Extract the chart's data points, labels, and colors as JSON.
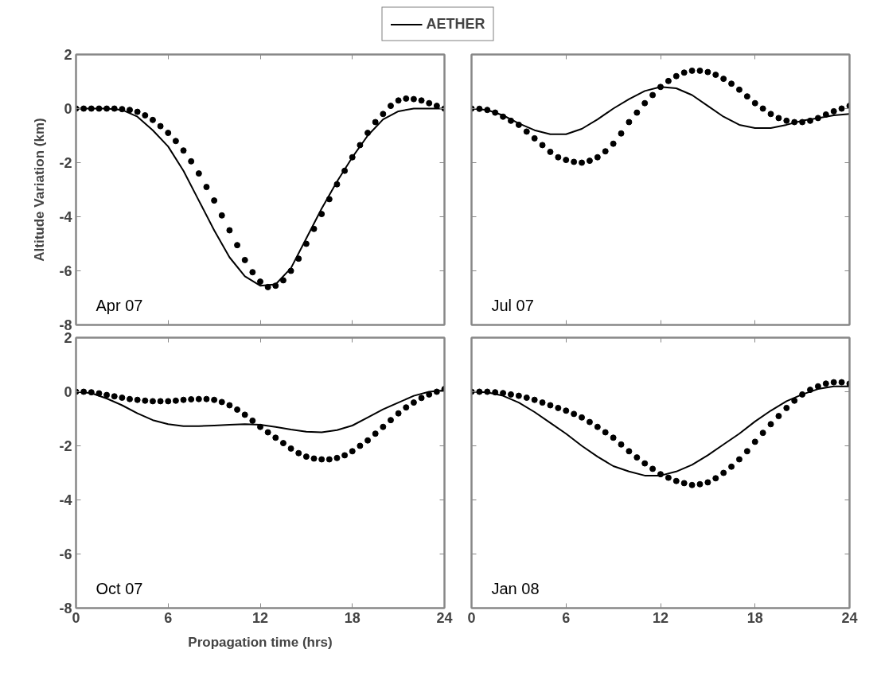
{
  "chart_data": [
    {
      "type": "line",
      "title": "Apr 07",
      "ylabel": "Altitude Variation (km)",
      "xlim": [
        0,
        24
      ],
      "ylim": [
        -8,
        2
      ],
      "xticks": [
        0,
        6,
        12,
        18,
        24
      ],
      "yticks": [
        -8,
        -6,
        -4,
        -2,
        0,
        2
      ],
      "tick_labels": "y",
      "grid": false,
      "legend": "top",
      "series": [
        {
          "name": "AETHER",
          "color": "#000000",
          "x": [
            0,
            1,
            2,
            3,
            4,
            5,
            6,
            7,
            8,
            9,
            10,
            11,
            12,
            13,
            14,
            15,
            16,
            17,
            18,
            19,
            20,
            21,
            22,
            23,
            24
          ],
          "values": [
            0,
            0,
            0,
            -0.05,
            -0.3,
            -0.8,
            -1.4,
            -2.3,
            -3.4,
            -4.5,
            -5.5,
            -6.2,
            -6.55,
            -6.5,
            -5.9,
            -4.8,
            -3.7,
            -2.7,
            -1.8,
            -1.0,
            -0.4,
            -0.1,
            0,
            0,
            0
          ]
        },
        {
          "type": "scatter",
          "marker": "circle",
          "color": "#000000",
          "x": [
            0,
            0.5,
            1,
            1.5,
            2,
            2.5,
            3,
            3.5,
            4,
            4.5,
            5,
            5.5,
            6,
            6.5,
            7,
            7.5,
            8,
            8.5,
            9,
            9.5,
            10,
            10.5,
            11,
            11.5,
            12,
            12.5,
            13,
            13.5,
            14,
            14.5,
            15,
            15.5,
            16,
            16.5,
            17,
            17.5,
            18,
            18.5,
            19,
            19.5,
            20,
            20.5,
            21,
            21.5,
            22,
            22.5,
            23,
            23.5,
            24
          ],
          "values": [
            0,
            0,
            0,
            0,
            0,
            0,
            -0.02,
            -0.05,
            -0.12,
            -0.25,
            -0.42,
            -0.65,
            -0.9,
            -1.2,
            -1.55,
            -1.95,
            -2.4,
            -2.9,
            -3.4,
            -3.95,
            -4.5,
            -5.05,
            -5.6,
            -6.05,
            -6.4,
            -6.6,
            -6.55,
            -6.35,
            -6.0,
            -5.55,
            -5.0,
            -4.45,
            -3.9,
            -3.35,
            -2.8,
            -2.3,
            -1.8,
            -1.35,
            -0.9,
            -0.5,
            -0.2,
            0.1,
            0.3,
            0.37,
            0.35,
            0.3,
            0.2,
            0.1,
            0
          ]
        }
      ]
    },
    {
      "type": "line",
      "title": "Jul 07",
      "xlim": [
        0,
        24
      ],
      "ylim": [
        -8,
        2
      ],
      "xticks": [
        0,
        6,
        12,
        18,
        24
      ],
      "yticks": [
        -8,
        -6,
        -4,
        -2,
        0,
        2
      ],
      "tick_labels": false,
      "grid": false,
      "series": [
        {
          "color": "#000000",
          "x": [
            0,
            1,
            2,
            3,
            4,
            5,
            6,
            7,
            8,
            9,
            10,
            11,
            12,
            13,
            14,
            15,
            16,
            17,
            18,
            19,
            20,
            21,
            22,
            23,
            24
          ],
          "values": [
            0,
            -0.05,
            -0.25,
            -0.55,
            -0.8,
            -0.95,
            -0.95,
            -0.75,
            -0.4,
            0,
            0.35,
            0.65,
            0.8,
            0.75,
            0.5,
            0.1,
            -0.3,
            -0.6,
            -0.72,
            -0.72,
            -0.6,
            -0.45,
            -0.35,
            -0.25,
            -0.2
          ]
        },
        {
          "type": "scatter",
          "marker": "circle",
          "color": "#000000",
          "x": [
            0,
            0.5,
            1,
            1.5,
            2,
            2.5,
            3,
            3.5,
            4,
            4.5,
            5,
            5.5,
            6,
            6.5,
            7,
            7.5,
            8,
            8.5,
            9,
            9.5,
            10,
            10.5,
            11,
            11.5,
            12,
            12.5,
            13,
            13.5,
            14,
            14.5,
            15,
            15.5,
            16,
            16.5,
            17,
            17.5,
            18,
            18.5,
            19,
            19.5,
            20,
            20.5,
            21,
            21.5,
            22,
            22.5,
            23,
            23.5,
            24
          ],
          "values": [
            0,
            -0.01,
            -0.05,
            -0.15,
            -0.3,
            -0.45,
            -0.6,
            -0.85,
            -1.1,
            -1.35,
            -1.6,
            -1.8,
            -1.9,
            -1.97,
            -2.0,
            -1.93,
            -1.8,
            -1.58,
            -1.3,
            -0.92,
            -0.5,
            -0.15,
            0.2,
            0.5,
            0.8,
            1.02,
            1.2,
            1.33,
            1.4,
            1.4,
            1.35,
            1.25,
            1.1,
            0.92,
            0.7,
            0.45,
            0.2,
            0,
            -0.2,
            -0.35,
            -0.45,
            -0.5,
            -0.5,
            -0.45,
            -0.35,
            -0.22,
            -0.1,
            0,
            0.1
          ]
        }
      ]
    },
    {
      "type": "line",
      "title": "Oct 07",
      "xlabel": "Propagation time (hrs)",
      "xlim": [
        0,
        24
      ],
      "ylim": [
        -8,
        2
      ],
      "xticks": [
        0,
        6,
        12,
        18,
        24
      ],
      "yticks": [
        -8,
        -6,
        -4,
        -2,
        0,
        2
      ],
      "grid": false,
      "series": [
        {
          "color": "#000000",
          "x": [
            0,
            1,
            2,
            3,
            4,
            5,
            6,
            7,
            8,
            9,
            10,
            11,
            12,
            13,
            14,
            15,
            16,
            17,
            18,
            19,
            20,
            21,
            22,
            23,
            24
          ],
          "values": [
            0,
            -0.05,
            -0.25,
            -0.5,
            -0.8,
            -1.05,
            -1.2,
            -1.27,
            -1.27,
            -1.25,
            -1.22,
            -1.2,
            -1.22,
            -1.3,
            -1.4,
            -1.48,
            -1.5,
            -1.42,
            -1.25,
            -0.95,
            -0.65,
            -0.4,
            -0.15,
            0,
            0.05
          ]
        },
        {
          "type": "scatter",
          "marker": "circle",
          "color": "#000000",
          "x": [
            0,
            0.5,
            1,
            1.5,
            2,
            2.5,
            3,
            3.5,
            4,
            4.5,
            5,
            5.5,
            6,
            6.5,
            7,
            7.5,
            8,
            8.5,
            9,
            9.5,
            10,
            10.5,
            11,
            11.5,
            12,
            12.5,
            13,
            13.5,
            14,
            14.5,
            15,
            15.5,
            16,
            16.5,
            17,
            17.5,
            18,
            18.5,
            19,
            19.5,
            20,
            20.5,
            21,
            21.5,
            22,
            22.5,
            23,
            23.5,
            24
          ],
          "values": [
            0,
            0,
            -0.02,
            -0.06,
            -0.12,
            -0.17,
            -0.22,
            -0.27,
            -0.3,
            -0.33,
            -0.35,
            -0.35,
            -0.35,
            -0.33,
            -0.3,
            -0.28,
            -0.27,
            -0.27,
            -0.3,
            -0.38,
            -0.5,
            -0.66,
            -0.85,
            -1.07,
            -1.3,
            -1.5,
            -1.7,
            -1.9,
            -2.1,
            -2.27,
            -2.4,
            -2.47,
            -2.5,
            -2.5,
            -2.45,
            -2.35,
            -2.2,
            -2.0,
            -1.8,
            -1.55,
            -1.3,
            -1.05,
            -0.8,
            -0.58,
            -0.4,
            -0.23,
            -0.1,
            0,
            0.1
          ]
        }
      ]
    },
    {
      "type": "line",
      "title": "Jan 08",
      "xlim": [
        0,
        24
      ],
      "ylim": [
        -8,
        2
      ],
      "xticks": [
        0,
        6,
        12,
        18,
        24
      ],
      "yticks": [
        -8,
        -6,
        -4,
        -2,
        0,
        2
      ],
      "tick_labels": "x",
      "grid": false,
      "series": [
        {
          "color": "#000000",
          "x": [
            0,
            1,
            2,
            3,
            4,
            5,
            6,
            7,
            8,
            9,
            10,
            11,
            12,
            13,
            14,
            15,
            16,
            17,
            18,
            19,
            20,
            21,
            22,
            23,
            24
          ],
          "values": [
            0,
            -0.02,
            -0.15,
            -0.4,
            -0.75,
            -1.15,
            -1.55,
            -2.0,
            -2.4,
            -2.75,
            -2.95,
            -3.1,
            -3.1,
            -2.95,
            -2.7,
            -2.35,
            -1.95,
            -1.55,
            -1.1,
            -0.7,
            -0.35,
            -0.1,
            0.1,
            0.2,
            0.2
          ]
        },
        {
          "type": "scatter",
          "marker": "circle",
          "color": "#000000",
          "x": [
            0,
            0.5,
            1,
            1.5,
            2,
            2.5,
            3,
            3.5,
            4,
            4.5,
            5,
            5.5,
            6,
            6.5,
            7,
            7.5,
            8,
            8.5,
            9,
            9.5,
            10,
            10.5,
            11,
            11.5,
            12,
            12.5,
            13,
            13.5,
            14,
            14.5,
            15,
            15.5,
            16,
            16.5,
            17,
            17.5,
            18,
            18.5,
            19,
            19.5,
            20,
            20.5,
            21,
            21.5,
            22,
            22.5,
            23,
            23.5,
            24
          ],
          "values": [
            0,
            0,
            0,
            -0.02,
            -0.05,
            -0.1,
            -0.15,
            -0.22,
            -0.3,
            -0.4,
            -0.5,
            -0.6,
            -0.7,
            -0.82,
            -0.95,
            -1.12,
            -1.3,
            -1.5,
            -1.7,
            -1.95,
            -2.2,
            -2.43,
            -2.65,
            -2.85,
            -3.05,
            -3.18,
            -3.3,
            -3.38,
            -3.45,
            -3.42,
            -3.35,
            -3.2,
            -3.0,
            -2.77,
            -2.5,
            -2.2,
            -1.85,
            -1.52,
            -1.2,
            -0.9,
            -0.6,
            -0.33,
            -0.1,
            0.07,
            0.2,
            0.3,
            0.35,
            0.35,
            0.3
          ]
        }
      ]
    }
  ]
}
